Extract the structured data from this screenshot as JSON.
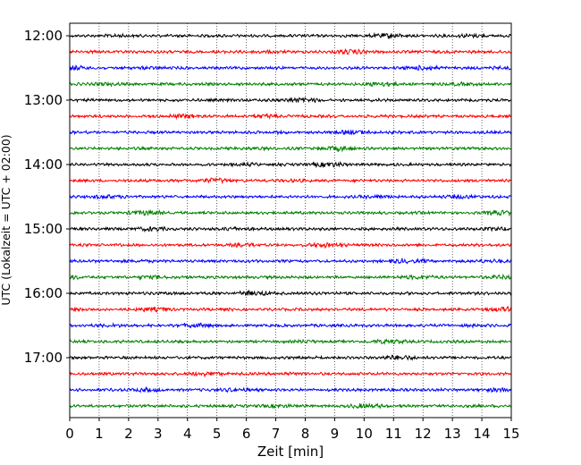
{
  "chart_data": {
    "type": "line",
    "title": "",
    "xlabel": "Zeit  [min]",
    "ylabel": "UTC (Lokalzeit = UTC + 02:00)",
    "xlim": [
      0,
      15
    ],
    "x_ticks": [
      "0",
      "1",
      "2",
      "3",
      "4",
      "5",
      "6",
      "7",
      "8",
      "9",
      "10",
      "11",
      "12",
      "13",
      "14",
      "15"
    ],
    "y_ticks": [
      "12:00",
      "13:00",
      "14:00",
      "15:00",
      "16:00",
      "17:00"
    ],
    "grid": "vertical dotted at each minute",
    "trace_interval_minutes": 15,
    "trace_start": "12:00",
    "trace_count": 24,
    "trace_colors": [
      "#000000",
      "#ff0000",
      "#0000ff",
      "#008000"
    ]
  }
}
